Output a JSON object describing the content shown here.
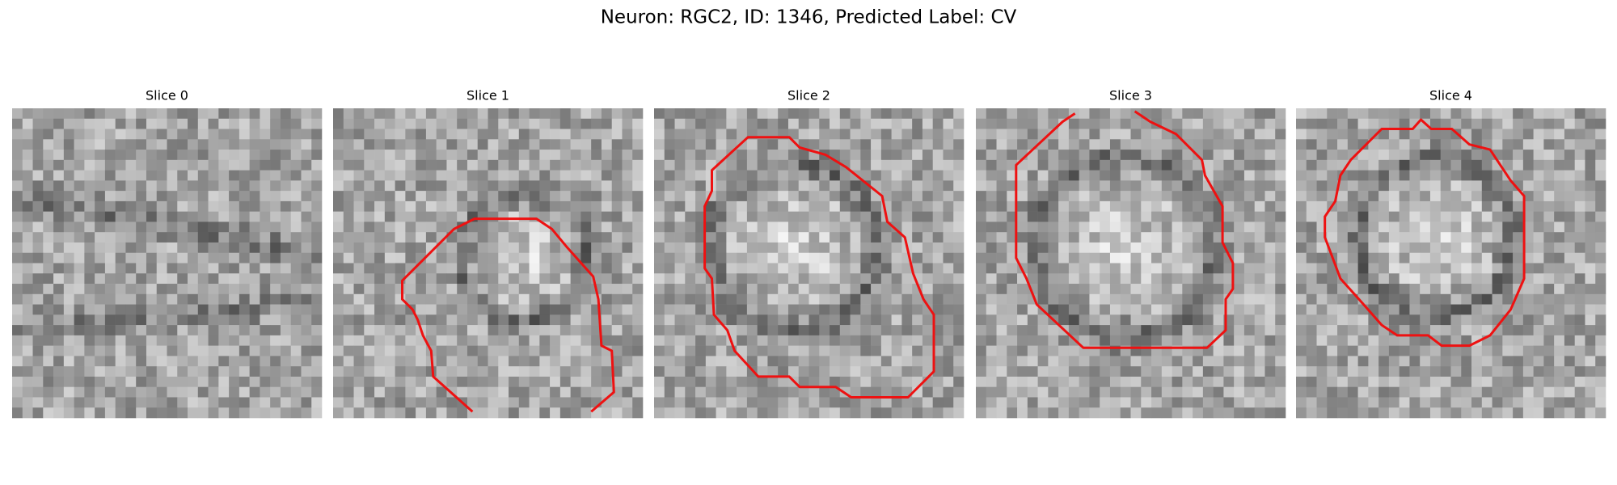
{
  "title": "Neuron: RGC2, ID: 1346, Predicted Label: CV",
  "panels": [
    {
      "title": "Slice 0"
    },
    {
      "title": "Slice 1"
    },
    {
      "title": "Slice 2"
    },
    {
      "title": "Slice 3"
    },
    {
      "title": "Slice 4"
    }
  ]
}
